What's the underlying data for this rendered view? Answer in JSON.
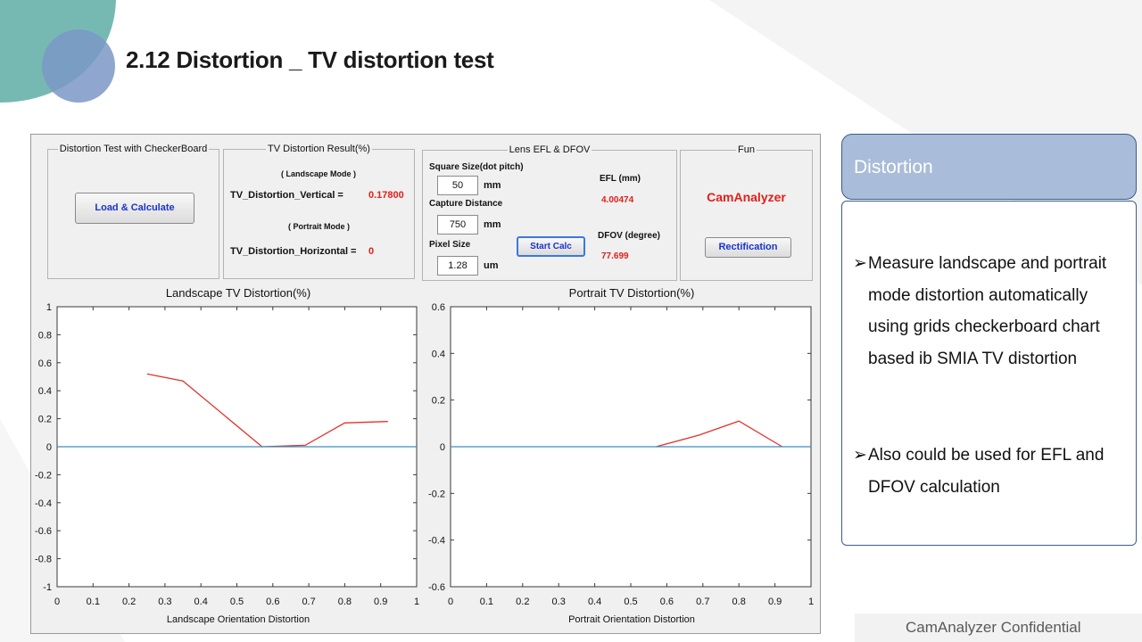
{
  "slide": {
    "title": "2.12  Distortion _ TV distortion test",
    "colors": {
      "teal_shape": "#76b9b3",
      "blue_circle": "#7b98c6",
      "accent_red": "#e0201a",
      "plot_line": "#e3312b",
      "zero_line": "#3b8fc4"
    }
  },
  "app": {
    "checkerboard_panel": {
      "title": "Distortion Test with CheckerBoard",
      "load_button": "Load & Calculate"
    },
    "result_panel": {
      "title": "TV Distortion Result(%)",
      "landscape_mode": "( Landscape Mode )",
      "vertical_label": "TV_Distortion_Vertical =",
      "vertical_value": "0.17800",
      "portrait_mode": "( Portrait Mode )",
      "horizontal_label": "TV_Distortion_Horizontal =",
      "horizontal_value": "0"
    },
    "efl_panel": {
      "title": "Lens EFL & DFOV",
      "square_size_label": "Square Size(dot pitch)",
      "square_size_value": "50",
      "square_size_unit": "mm",
      "capture_distance_label": "Capture Distance",
      "capture_distance_value": "750",
      "capture_distance_unit": "mm",
      "pixel_size_label": "Pixel Size",
      "pixel_size_value": "1.28",
      "pixel_size_unit": "um",
      "start_button": "Start Calc",
      "efl_label": "EFL (mm)",
      "efl_value": "4.00474",
      "dfov_label": "DFOV (degree)",
      "dfov_value": "77.699"
    },
    "fun_panel": {
      "title": "Fun",
      "brand": "CamAnalyzer",
      "rectification_button": "Rectification"
    }
  },
  "chart_data": [
    {
      "type": "line",
      "title": "Landscape TV Distortion(%)",
      "xlabel": "Landscape Orientation Distortion",
      "ylabel": "",
      "xlim": [
        0,
        1
      ],
      "ylim": [
        -1,
        1
      ],
      "xticks": [
        "0",
        "0.1",
        "0.2",
        "0.3",
        "0.4",
        "0.5",
        "0.6",
        "0.7",
        "0.8",
        "0.9",
        "1"
      ],
      "yticks": [
        "1",
        "0.8",
        "0.6",
        "0.4",
        "0.2",
        "0",
        "-0.2",
        "-0.4",
        "-0.6",
        "-0.8",
        "-1"
      ],
      "grid": false,
      "series": [
        {
          "color": "#e3312b",
          "x": [
            0.25,
            0.35,
            0.57,
            0.69,
            0.8,
            0.92
          ],
          "y": [
            0.52,
            0.47,
            0.0,
            0.01,
            0.17,
            0.18
          ]
        },
        {
          "color": "#3b8fc4",
          "x": [
            0,
            1
          ],
          "y": [
            0,
            0
          ]
        }
      ]
    },
    {
      "type": "line",
      "title": "Portrait TV Distortion(%)",
      "xlabel": "Portrait Orientation Distortion",
      "ylabel": "",
      "xlim": [
        0,
        1
      ],
      "ylim": [
        -0.6,
        0.6
      ],
      "xticks": [
        "0",
        "0.1",
        "0.2",
        "0.3",
        "0.4",
        "0.5",
        "0.6",
        "0.7",
        "0.8",
        "0.9",
        "1"
      ],
      "yticks": [
        "0.6",
        "0.4",
        "0.2",
        "0",
        "-0.2",
        "-0.4",
        "-0.6"
      ],
      "grid": false,
      "series": [
        {
          "color": "#e3312b",
          "x": [
            0.57,
            0.69,
            0.8,
            0.92
          ],
          "y": [
            0.0,
            0.05,
            0.11,
            0.0
          ]
        },
        {
          "color": "#3b8fc4",
          "x": [
            0,
            1
          ],
          "y": [
            0,
            0
          ]
        }
      ]
    }
  ],
  "sidebar": {
    "heading": "Distortion",
    "bullets": [
      "Measure landscape and portrait mode distortion automatically using grids checkerboard chart based ib SMIA TV distortion",
      "Also could be used for EFL and DFOV calculation"
    ],
    "bullet_icon": "arrow-bullet-icon"
  },
  "footer": {
    "text": "CamAnalyzer  Confidential"
  }
}
